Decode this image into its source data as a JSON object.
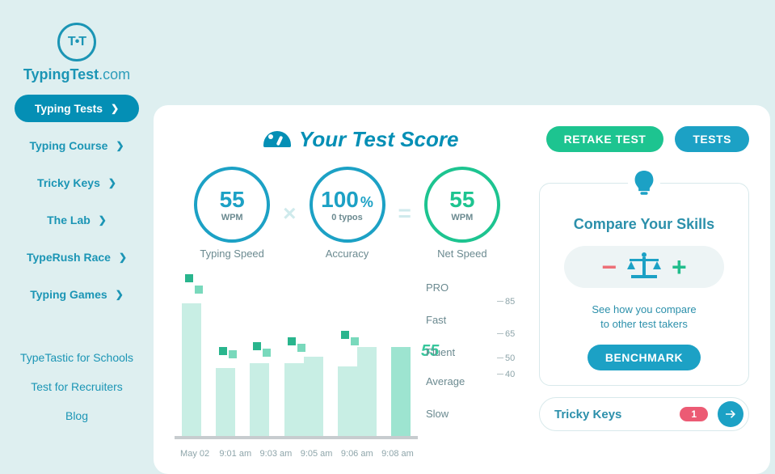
{
  "logo": {
    "brand": "TypingTest",
    "suffix": ".com",
    "glyph": "T•T"
  },
  "nav": {
    "items": [
      {
        "label": "Typing Tests",
        "active": true
      },
      {
        "label": "Typing Course",
        "active": false
      },
      {
        "label": "Tricky Keys",
        "active": false
      },
      {
        "label": "The Lab",
        "active": false
      },
      {
        "label": "TypeRush Race",
        "active": false
      },
      {
        "label": "Typing Games",
        "active": false
      }
    ],
    "plain": [
      "TypeTastic for Schools",
      "Test for Recruiters",
      "Blog"
    ]
  },
  "header": {
    "title": "Your Test Score",
    "retake": "RETAKE TEST",
    "tests": "TESTS"
  },
  "metrics": {
    "speed": {
      "value": "55",
      "unit": "WPM",
      "caption": "Typing Speed"
    },
    "accuracy": {
      "value": "100",
      "unit": "0  typos",
      "suffix": "%",
      "caption": "Accuracy"
    },
    "net": {
      "value": "55",
      "unit": "WPM",
      "caption": "Net Speed"
    }
  },
  "chart": {
    "current_label": "55",
    "y_max": 100,
    "bar_color_pale": "#c8eee4",
    "bar_color_mint": "#9de4d0",
    "marker_dark": "#29b58d",
    "marker_light": "#79d9bc",
    "sessions": [
      {
        "label": "May 02",
        "bar1": 82,
        "m1": 95,
        "m2": 88
      },
      {
        "label": "9:01 am",
        "bar1": 42,
        "m1": 50,
        "m2": 48
      },
      {
        "label": "9:03 am",
        "bar1": 45,
        "m1": 53,
        "m2": 49
      },
      {
        "label": "9:05 am",
        "bar1": 45,
        "bar2": 49,
        "m1": 56,
        "m2": 52
      },
      {
        "label": "9:06 am",
        "bar1": 43,
        "bar2": 55,
        "m1": 60,
        "m2": 56
      },
      {
        "label": "9:08 am",
        "bar1": 55,
        "current": true
      }
    ],
    "levels": [
      {
        "label": "PRO",
        "y": 94
      },
      {
        "label": "Fast",
        "y": 74
      },
      {
        "label": "Fluent",
        "y": 54
      },
      {
        "label": "Average",
        "y": 36
      },
      {
        "label": "Slow",
        "y": 16
      }
    ],
    "scale_values": [
      85,
      65,
      50,
      40
    ]
  },
  "compare": {
    "title": "Compare Your Skills",
    "desc1": "See how you compare",
    "desc2": "to other test takers",
    "benchmark": "BENCHMARK"
  },
  "tricky": {
    "title": "Tricky Keys",
    "count": "1"
  }
}
